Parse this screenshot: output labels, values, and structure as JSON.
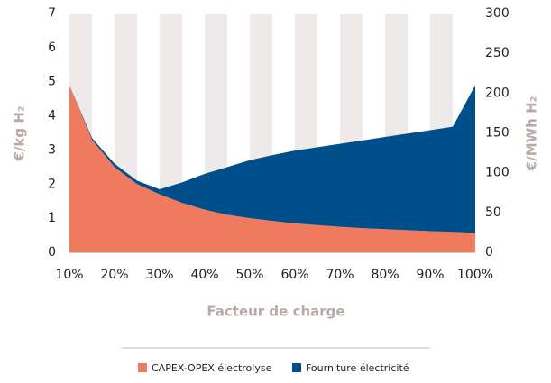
{
  "chart_data": {
    "type": "area",
    "stacked": true,
    "xlabel": "Facteur de charge",
    "ylabel": "€/kg H₂",
    "y2label": "€/MWh H₂",
    "x": [
      10,
      15,
      20,
      25,
      30,
      35,
      40,
      45,
      50,
      55,
      60,
      65,
      70,
      75,
      80,
      85,
      90,
      95,
      100
    ],
    "series": [
      {
        "name": "CAPEX-OPEX électrolyse",
        "color": "#f07a5e",
        "values": [
          4.9,
          3.3,
          2.5,
          2.0,
          1.7,
          1.45,
          1.25,
          1.1,
          1.0,
          0.92,
          0.85,
          0.8,
          0.75,
          0.71,
          0.68,
          0.65,
          0.62,
          0.6,
          0.57
        ]
      },
      {
        "name": "Fourniture électricité",
        "color": "#004f8a",
        "values": [
          0,
          0.05,
          0.1,
          0.1,
          0.15,
          0.6,
          1.05,
          1.4,
          1.7,
          1.93,
          2.13,
          2.28,
          2.43,
          2.57,
          2.7,
          2.83,
          2.96,
          3.08,
          4.33
        ]
      }
    ],
    "xlim": [
      10,
      100
    ],
    "xticks": [
      {
        "value": 10,
        "label": "10%"
      },
      {
        "value": 20,
        "label": "20%"
      },
      {
        "value": 30,
        "label": "30%"
      },
      {
        "value": 40,
        "label": "40%"
      },
      {
        "value": 50,
        "label": "50%"
      },
      {
        "value": 60,
        "label": "60%"
      },
      {
        "value": 70,
        "label": "70%"
      },
      {
        "value": 80,
        "label": "80%"
      },
      {
        "value": 90,
        "label": "90%"
      },
      {
        "value": 100,
        "label": "100%"
      }
    ],
    "ylim": [
      0,
      7
    ],
    "yticks": [
      0,
      1,
      2,
      3,
      4,
      5,
      6,
      7
    ],
    "y2lim": [
      0,
      300
    ],
    "y2ticks": [
      0,
      50,
      100,
      150,
      200,
      250,
      300
    ],
    "legend": "bottom"
  }
}
